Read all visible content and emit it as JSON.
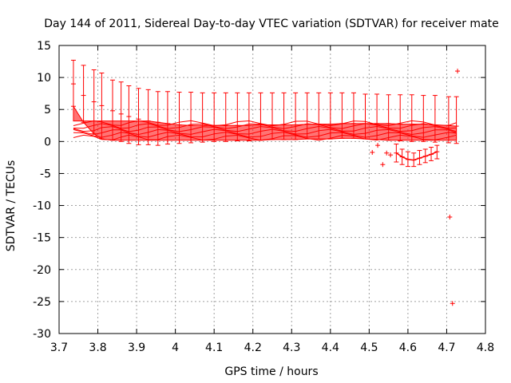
{
  "chart_data": {
    "type": "scatter",
    "title": "Day 144 of 2011, Sidereal Day-to-day VTEC variation (SDTVAR) for receiver mate",
    "xlabel": "GPS time / hours",
    "ylabel": "SDTVAR / TECUs",
    "xlim": [
      3.7,
      4.8
    ],
    "ylim": [
      -30,
      15
    ],
    "grid": true,
    "x_ticks": [
      3.7,
      3.8,
      3.9,
      4.0,
      4.1,
      4.2,
      4.3,
      4.4,
      4.5,
      4.6,
      4.7,
      4.8
    ],
    "x_tick_labels": [
      "3.7",
      "3.8",
      "3.9",
      "4",
      "4.1",
      "4.2",
      "4.3",
      "4.4",
      "4.5",
      "4.6",
      "4.7",
      "4.8"
    ],
    "y_ticks": [
      15,
      10,
      5,
      0,
      -5,
      -10,
      -15,
      -20,
      -25,
      -30
    ],
    "y_tick_labels": [
      "15",
      "10",
      "5",
      "0",
      "-5",
      "-10",
      "-15",
      "-20",
      "-25",
      "-30"
    ],
    "color": "#ff0000",
    "series": [
      {
        "name": "errorbars",
        "points": [
          {
            "x": 3.737,
            "y": 9.0,
            "low": 5.5,
            "high": 12.7
          },
          {
            "x": 3.763,
            "y": 7.2,
            "low": 3.0,
            "high": 11.9
          },
          {
            "x": 3.79,
            "y": 6.2,
            "low": 1.2,
            "high": 11.2
          },
          {
            "x": 3.81,
            "y": 5.6,
            "low": 0.4,
            "high": 10.7
          },
          {
            "x": 3.838,
            "y": 4.8,
            "low": 0.2,
            "high": 9.6
          },
          {
            "x": 3.86,
            "y": 4.3,
            "low": 0.0,
            "high": 9.3
          },
          {
            "x": 3.88,
            "y": 3.9,
            "low": -0.3,
            "high": 8.7
          },
          {
            "x": 3.905,
            "y": 3.5,
            "low": -0.5,
            "high": 8.3
          },
          {
            "x": 3.93,
            "y": 3.2,
            "low": -0.5,
            "high": 8.1
          },
          {
            "x": 3.955,
            "y": 3.0,
            "low": -0.6,
            "high": 7.8
          },
          {
            "x": 3.98,
            "y": 2.8,
            "low": -0.4,
            "high": 7.8
          },
          {
            "x": 4.01,
            "y": 2.6,
            "low": -0.3,
            "high": 7.7
          },
          {
            "x": 4.04,
            "y": 2.5,
            "low": -0.2,
            "high": 7.7
          },
          {
            "x": 4.07,
            "y": 2.5,
            "low": -0.1,
            "high": 7.6
          },
          {
            "x": 4.1,
            "y": 2.5,
            "low": 0.0,
            "high": 7.6
          },
          {
            "x": 4.13,
            "y": 2.5,
            "low": 0.0,
            "high": 7.6
          },
          {
            "x": 4.16,
            "y": 2.5,
            "low": 0.1,
            "high": 7.6
          },
          {
            "x": 4.19,
            "y": 2.5,
            "low": 0.1,
            "high": 7.6
          },
          {
            "x": 4.22,
            "y": 2.6,
            "low": 0.2,
            "high": 7.6
          },
          {
            "x": 4.25,
            "y": 2.6,
            "low": 0.3,
            "high": 7.6
          },
          {
            "x": 4.28,
            "y": 2.6,
            "low": 0.3,
            "high": 7.6
          },
          {
            "x": 4.31,
            "y": 2.6,
            "low": 0.3,
            "high": 7.6
          },
          {
            "x": 4.34,
            "y": 2.7,
            "low": 0.4,
            "high": 7.6
          },
          {
            "x": 4.37,
            "y": 2.7,
            "low": 0.4,
            "high": 7.6
          },
          {
            "x": 4.4,
            "y": 2.7,
            "low": 0.4,
            "high": 7.6
          },
          {
            "x": 4.43,
            "y": 2.8,
            "low": 0.5,
            "high": 7.6
          },
          {
            "x": 4.46,
            "y": 2.8,
            "low": 0.5,
            "high": 7.6
          },
          {
            "x": 4.49,
            "y": 2.8,
            "low": 0.4,
            "high": 7.4
          },
          {
            "x": 4.52,
            "y": 2.8,
            "low": 0.3,
            "high": 7.4
          },
          {
            "x": 4.55,
            "y": 2.8,
            "low": 0.2,
            "high": 7.3
          },
          {
            "x": 4.58,
            "y": 2.7,
            "low": 0.1,
            "high": 7.3
          },
          {
            "x": 4.61,
            "y": 2.7,
            "low": 0.0,
            "high": 7.3
          },
          {
            "x": 4.64,
            "y": 2.7,
            "low": 0.0,
            "high": 7.2
          },
          {
            "x": 4.67,
            "y": 2.6,
            "low": -0.1,
            "high": 7.2
          },
          {
            "x": 4.705,
            "y": 2.5,
            "low": -0.2,
            "high": 7.0
          },
          {
            "x": 4.725,
            "y": 2.4,
            "low": -0.3,
            "high": 7.0
          }
        ]
      },
      {
        "name": "dip-errorbars",
        "points": [
          {
            "x": 4.57,
            "y": -1.8,
            "low": -3.2,
            "high": -0.4
          },
          {
            "x": 4.585,
            "y": -2.4,
            "low": -3.6,
            "high": -1.2
          },
          {
            "x": 4.6,
            "y": -2.8,
            "low": -3.9,
            "high": -1.6
          },
          {
            "x": 4.615,
            "y": -2.9,
            "low": -3.9,
            "high": -1.8
          },
          {
            "x": 4.63,
            "y": -2.6,
            "low": -3.6,
            "high": -1.4
          },
          {
            "x": 4.645,
            "y": -2.3,
            "low": -3.3,
            "high": -1.2
          },
          {
            "x": 4.66,
            "y": -2.0,
            "low": -3.0,
            "high": -0.9
          },
          {
            "x": 4.675,
            "y": -1.6,
            "low": -2.7,
            "high": -0.6
          }
        ]
      },
      {
        "name": "outliers",
        "points": [
          {
            "x": 4.508,
            "y": -1.7
          },
          {
            "x": 4.522,
            "y": -0.6
          },
          {
            "x": 4.535,
            "y": -3.6
          },
          {
            "x": 4.545,
            "y": -1.8
          },
          {
            "x": 4.555,
            "y": -2.1
          },
          {
            "x": 4.708,
            "y": -11.8
          },
          {
            "x": 4.715,
            "y": -25.3
          },
          {
            "x": 4.728,
            "y": 11.0
          }
        ]
      }
    ]
  }
}
